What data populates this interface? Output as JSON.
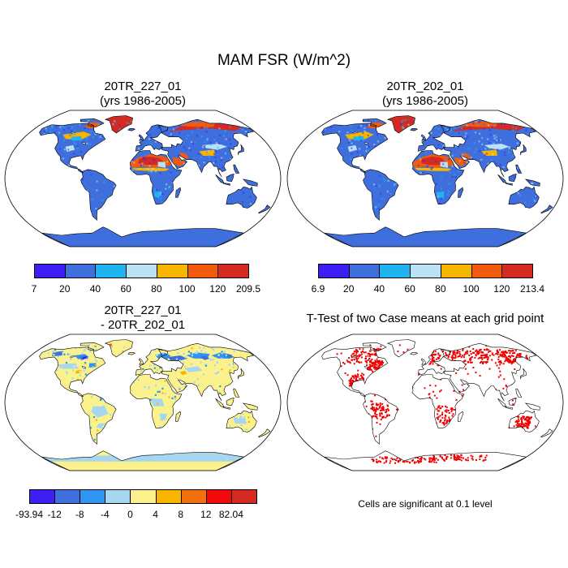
{
  "main_title": "MAM FSR (W/m^2)",
  "panels": {
    "p1": {
      "title_line1": "20TR_227_01",
      "title_line2": "(yrs 1986-2005)",
      "colors": [
        "#3d1ff5",
        "#3e6fdc",
        "#1fb4f0",
        "#b9e2f4",
        "#f7b500",
        "#f25a0d",
        "#d42a22"
      ],
      "ticks": [
        "7",
        "20",
        "40",
        "60",
        "80",
        "100",
        "120",
        "209.5"
      ]
    },
    "p2": {
      "title_line1": "20TR_202_01",
      "title_line2": "(yrs 1986-2005)",
      "colors": [
        "#3d1ff5",
        "#3e6fdc",
        "#1fb4f0",
        "#b9e2f4",
        "#f7b500",
        "#f25a0d",
        "#d42a22"
      ],
      "ticks": [
        "6.9",
        "20",
        "40",
        "60",
        "80",
        "100",
        "120",
        "213.4"
      ]
    },
    "p3": {
      "title_line1": "20TR_227_01",
      "title_line2": "- 20TR_202_01",
      "colors": [
        "#3d1ff5",
        "#3e6fdc",
        "#2f95f0",
        "#a6d6f0",
        "#fbf28e",
        "#f7b500",
        "#f2700d",
        "#f20a0a",
        "#d42a22"
      ],
      "ticks": [
        "-93.94",
        "-12",
        "-8",
        "-4",
        "0",
        "4",
        "8",
        "12",
        "82.04"
      ]
    },
    "p4": {
      "title": "T-Test of two Case means at each grid point",
      "note": "Cells are significant at 0.1 level",
      "sig_color": "#ee0000"
    }
  }
}
